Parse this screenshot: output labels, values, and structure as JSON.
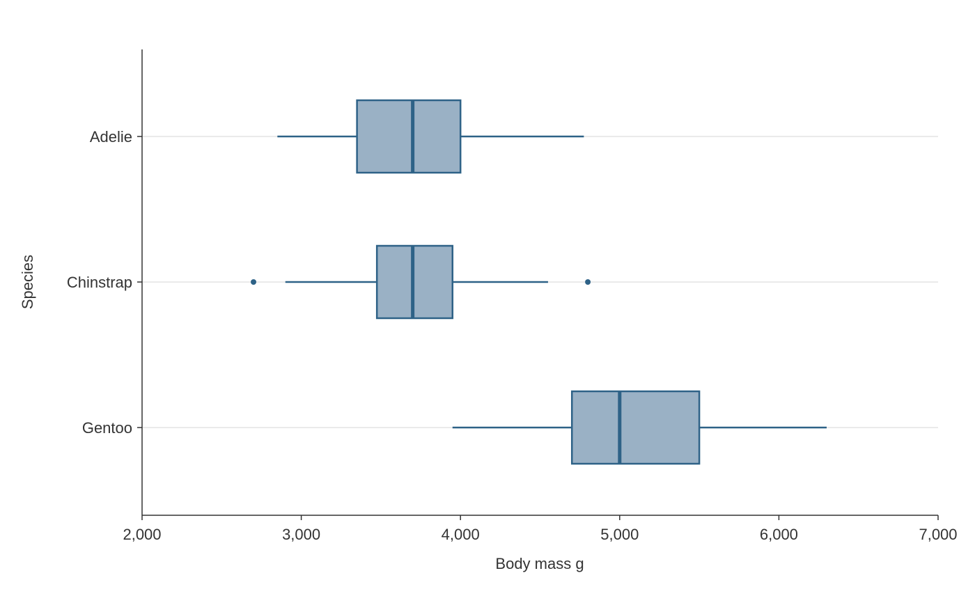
{
  "chart_data": {
    "type": "boxplot",
    "orientation": "horizontal",
    "xlabel": "Body mass g",
    "ylabel": "Species",
    "xlim": [
      2000,
      7000
    ],
    "x_ticks": [
      2000,
      3000,
      4000,
      5000,
      6000,
      7000
    ],
    "x_tick_labels": [
      "2,000",
      "3,000",
      "4,000",
      "5,000",
      "6,000",
      "7,000"
    ],
    "grid": "horizontal only",
    "colors": {
      "box_fill": "#9ab1c5",
      "box_stroke": "#2e6287",
      "grid": "#dddddd",
      "axis": "#333333"
    },
    "categories": [
      "Adelie",
      "Chinstrap",
      "Gentoo"
    ],
    "boxes": [
      {
        "category": "Adelie",
        "whisker_low": 2850,
        "q1": 3350,
        "median": 3700,
        "q3": 4000,
        "whisker_high": 4775,
        "outliers": []
      },
      {
        "category": "Chinstrap",
        "whisker_low": 2900,
        "q1": 3475,
        "median": 3700,
        "q3": 3950,
        "whisker_high": 4550,
        "outliers": [
          2700,
          4800
        ]
      },
      {
        "category": "Gentoo",
        "whisker_low": 3950,
        "q1": 4700,
        "median": 5000,
        "q3": 5500,
        "whisker_high": 6300,
        "outliers": []
      }
    ]
  }
}
